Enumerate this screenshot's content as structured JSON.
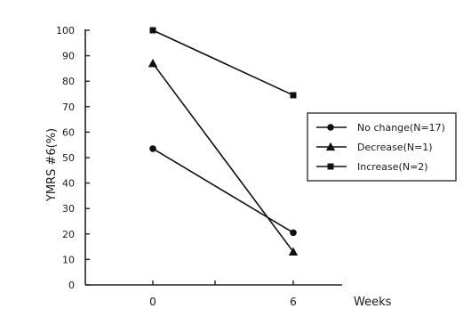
{
  "chart_data": {
    "type": "line",
    "x": [
      0,
      6
    ],
    "xticks": [
      "0",
      "6"
    ],
    "xlabel": "Weeks",
    "ylabel": "YMRS #6(%)",
    "ylim": [
      0,
      100
    ],
    "yticks": [
      0,
      10,
      20,
      30,
      40,
      50,
      60,
      70,
      80,
      90,
      100
    ],
    "legend_position": "right",
    "series": [
      {
        "name": "No change(N=17)",
        "marker": "circle",
        "values": [
          53.5,
          20.5
        ]
      },
      {
        "name": "Decrease(N=1)",
        "marker": "triangle",
        "values": [
          87,
          13
        ]
      },
      {
        "name": "Increase(N=2)",
        "marker": "square",
        "values": [
          100,
          74.5
        ]
      }
    ]
  }
}
